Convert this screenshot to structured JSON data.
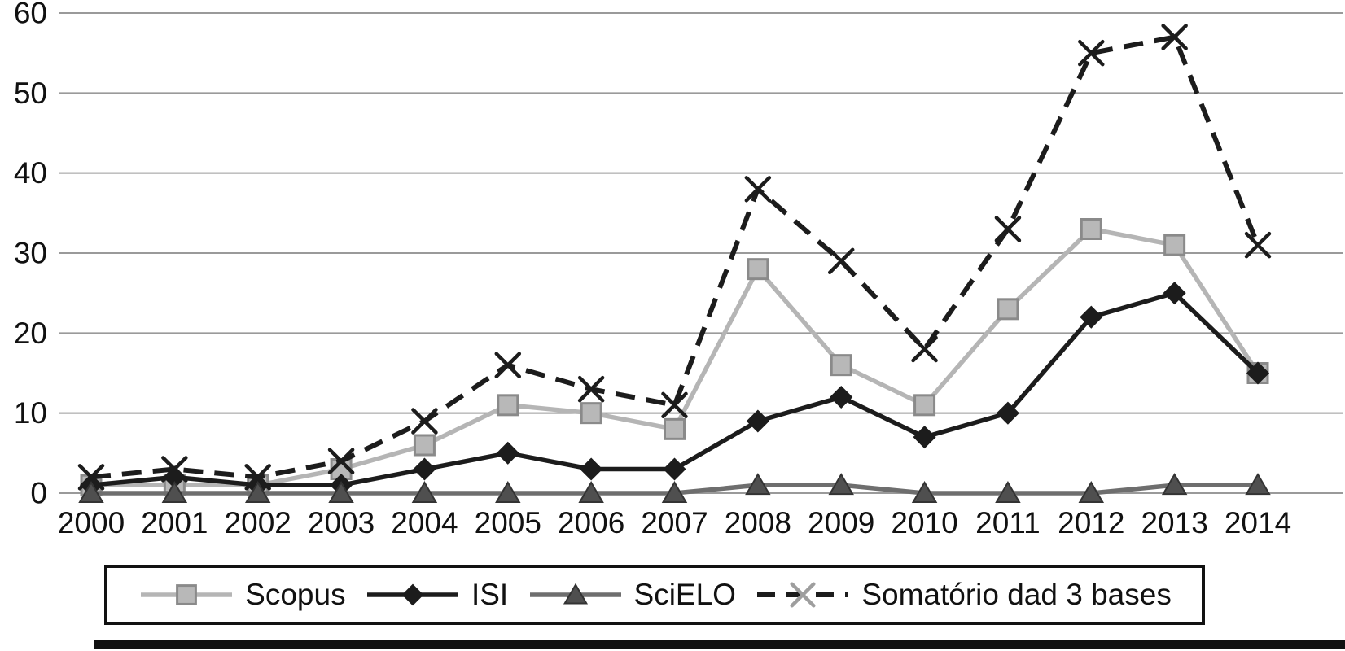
{
  "chart_data": {
    "type": "line",
    "title": "",
    "xlabel": "",
    "ylabel": "",
    "x": [
      2000,
      2001,
      2002,
      2003,
      2004,
      2005,
      2006,
      2007,
      2008,
      2009,
      2010,
      2011,
      2012,
      2013,
      2014
    ],
    "ylim": [
      0,
      60
    ],
    "yticks": [
      0,
      10,
      20,
      30,
      40,
      50,
      60
    ],
    "grid": true,
    "legend_position": "bottom",
    "series": [
      {
        "name": "Scopus",
        "marker": "square",
        "dashed": false,
        "line_color": "#b5b5b5",
        "marker_fill": "#b8b8b8",
        "marker_stroke": "#8a8a8a",
        "values": [
          1,
          1,
          1,
          3,
          6,
          11,
          10,
          8,
          28,
          16,
          11,
          23,
          33,
          31,
          15
        ]
      },
      {
        "name": "ISI",
        "marker": "diamond",
        "dashed": false,
        "line_color": "#1c1c1c",
        "marker_fill": "#1c1c1c",
        "marker_stroke": "#1c1c1c",
        "values": [
          1,
          2,
          1,
          1,
          3,
          5,
          3,
          3,
          9,
          12,
          7,
          10,
          22,
          25,
          15
        ]
      },
      {
        "name": "SciELO",
        "marker": "triangle",
        "dashed": false,
        "line_color": "#6e6e6e",
        "marker_fill": "#4f4f4f",
        "marker_stroke": "#333333",
        "values": [
          0,
          0,
          0,
          0,
          0,
          0,
          0,
          0,
          1,
          1,
          0,
          0,
          0,
          1,
          1
        ]
      },
      {
        "name": "Somatório dad 3 bases",
        "marker": "x",
        "dashed": true,
        "line_color": "#1c1c1c",
        "marker_fill": "none",
        "marker_stroke": "#1c1c1c",
        "legend_marker_stroke": "#9e9e9e",
        "values": [
          2,
          3,
          2,
          4,
          9,
          16,
          13,
          11,
          38,
          29,
          18,
          33,
          55,
          57,
          31
        ]
      }
    ],
    "colors": {
      "gridline": "#9a9a9a",
      "axis_text": "#111111",
      "background": "#ffffff"
    }
  }
}
